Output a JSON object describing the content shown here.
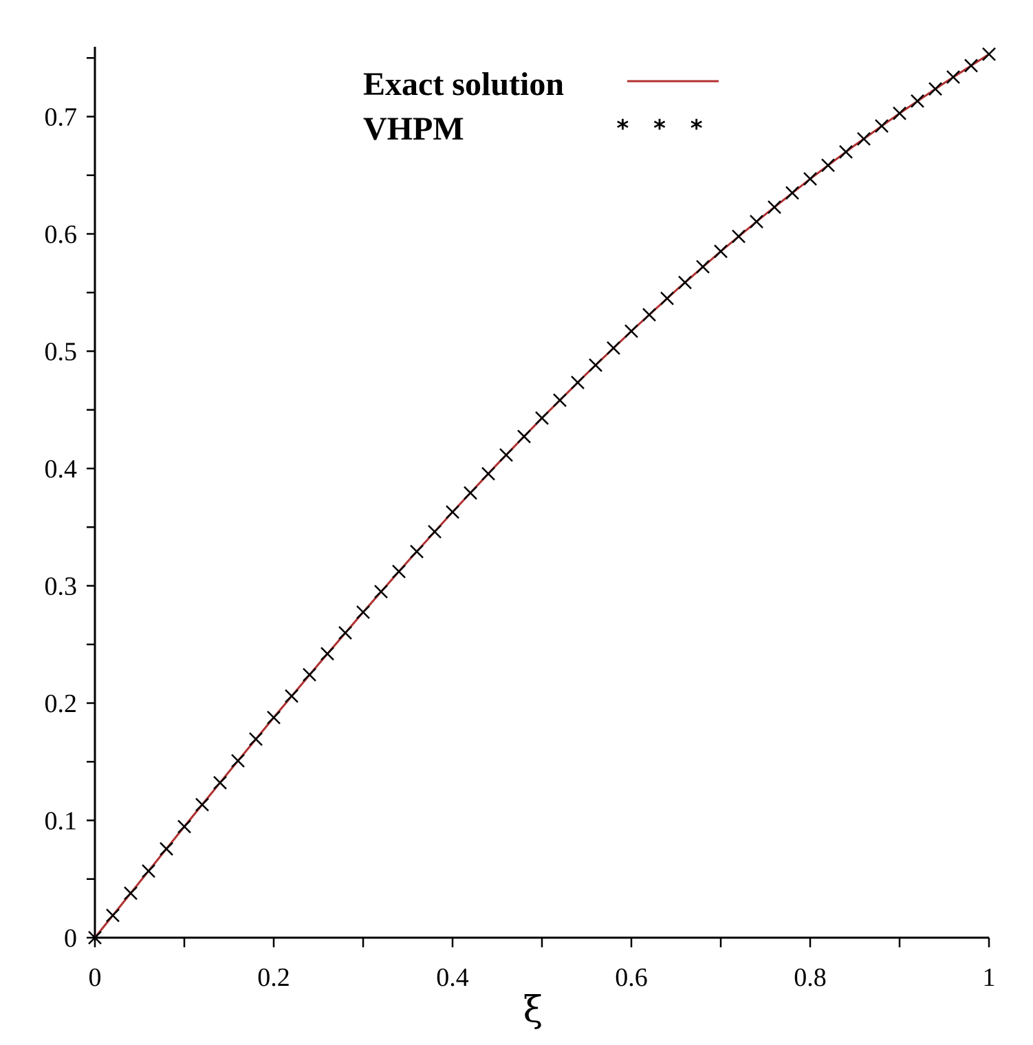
{
  "chart_data": {
    "type": "line",
    "xlabel": "ξ",
    "ylabel": "",
    "xlim": [
      0,
      1
    ],
    "ylim": [
      0,
      0.76
    ],
    "x_ticks": [
      "0",
      "0.2",
      "0.4",
      "0.6",
      "0.8",
      "1"
    ],
    "y_ticks": [
      "0",
      "0.1",
      "0.2",
      "0.3",
      "0.4",
      "0.5",
      "0.6",
      "0.7"
    ],
    "legend_position": "top-center",
    "grid": false,
    "series": [
      {
        "name": "Exact solution",
        "style": "line",
        "color": "#b03030",
        "x": [
          0,
          0.05,
          0.1,
          0.15,
          0.2,
          0.25,
          0.3,
          0.35,
          0.4,
          0.45,
          0.5,
          0.55,
          0.6,
          0.65,
          0.7,
          0.75,
          0.8,
          0.85,
          0.9,
          0.95,
          1
        ],
        "y": [
          0,
          0.0474,
          0.0947,
          0.1415,
          0.1877,
          0.2331,
          0.2775,
          0.3208,
          0.3629,
          0.4037,
          0.443,
          0.4808,
          0.5171,
          0.5519,
          0.5851,
          0.6167,
          0.6469,
          0.6756,
          0.7028,
          0.7287,
          0.7532
        ]
      },
      {
        "name": "VHPM",
        "style": "markers",
        "marker": "x",
        "legend_symbol": "* * *",
        "color": "#000000",
        "x": [
          0,
          0.02,
          0.04,
          0.06,
          0.08,
          0.1,
          0.12,
          0.14,
          0.16,
          0.18,
          0.2,
          0.22,
          0.24,
          0.26,
          0.28,
          0.3,
          0.32,
          0.34,
          0.36,
          0.38,
          0.4,
          0.42,
          0.44,
          0.46,
          0.48,
          0.5,
          0.52,
          0.54,
          0.56,
          0.58,
          0.6,
          0.62,
          0.64,
          0.66,
          0.68,
          0.7,
          0.72,
          0.74,
          0.76,
          0.78,
          0.8,
          0.82,
          0.84,
          0.86,
          0.88,
          0.9,
          0.92,
          0.94,
          0.96,
          0.98,
          1
        ],
        "y": [
          0,
          0.019,
          0.0379,
          0.0568,
          0.0757,
          0.0947,
          0.1134,
          0.1321,
          0.1508,
          0.1693,
          0.1877,
          0.206,
          0.2242,
          0.2421,
          0.2599,
          0.2775,
          0.295,
          0.3122,
          0.3292,
          0.3461,
          0.3629,
          0.3792,
          0.3955,
          0.4115,
          0.4273,
          0.443,
          0.4582,
          0.4733,
          0.4881,
          0.5027,
          0.5171,
          0.5311,
          0.545,
          0.5586,
          0.572,
          0.5851,
          0.5979,
          0.6105,
          0.6228,
          0.635,
          0.6469,
          0.6585,
          0.6699,
          0.681,
          0.692,
          0.7028,
          0.7133,
          0.7236,
          0.7337,
          0.7435,
          0.7532
        ]
      }
    ]
  }
}
